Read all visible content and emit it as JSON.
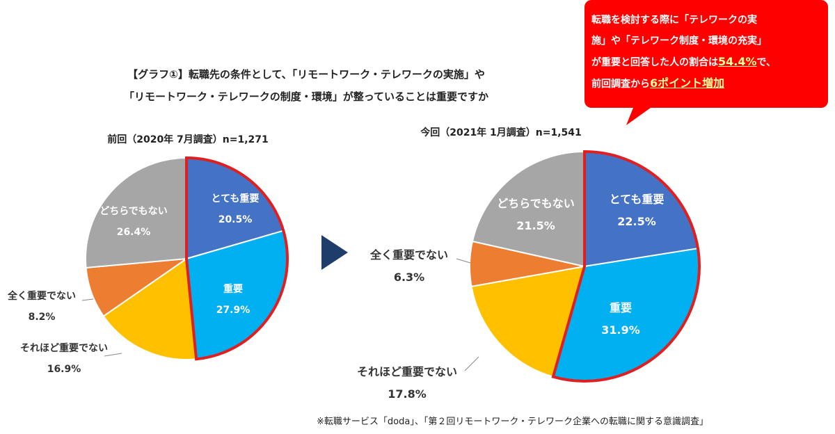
{
  "title_line1": "【グラフ①】転職先の条件として、「リモートワーク・テレワークの実施」や",
  "title_line2": "「リモートワーク・テレワークの制度・環境」が整っていることは重要ですか",
  "callout": {
    "line1": "転職を検討する際に「テレワークの実",
    "line2": "施」や「テレワーク制度・環境の充実」",
    "line3_pre": "が重要と回答した人の割合は",
    "line3_hl": "54.4%",
    "line3_post": "で、",
    "line4_pre": "前回調査から",
    "line4_hl": "6ポイント増加",
    "color": "#ff0000"
  },
  "source": "※転職サービス「doda」、「第２回リモートワーク・テレワーク企業への転職に関する意識調査」",
  "arrow": {
    "icon": "arrow-right-icon",
    "color": "#1f3d6b"
  },
  "chart_data": [
    {
      "type": "pie",
      "title": "前回（2020年 7月調査）n=1,271",
      "slices": [
        {
          "label": "とても重要",
          "value": 20.5,
          "text": "20.5%",
          "color": "#4472c4"
        },
        {
          "label": "重要",
          "value": 27.9,
          "text": "27.9%",
          "color": "#00b0f0"
        },
        {
          "label": "それほど重要でない",
          "value": 16.9,
          "text": "16.9%",
          "color": "#ffc000"
        },
        {
          "label": "全く重要でない",
          "value": 8.2,
          "text": "8.2%",
          "color": "#ed7d31"
        },
        {
          "label": "どちらでもない",
          "value": 26.4,
          "text": "26.4%",
          "color": "#a6a6a6"
        }
      ],
      "highlight_color": "#e02020"
    },
    {
      "type": "pie",
      "title": "今回（2021年 1月調査）n=1,541",
      "slices": [
        {
          "label": "とても重要",
          "value": 22.5,
          "text": "22.5%",
          "color": "#4472c4"
        },
        {
          "label": "重要",
          "value": 31.9,
          "text": "31.9%",
          "color": "#00b0f0"
        },
        {
          "label": "それほど重要でない",
          "value": 17.8,
          "text": "17.8%",
          "color": "#ffc000"
        },
        {
          "label": "全く重要でない",
          "value": 6.3,
          "text": "6.3%",
          "color": "#ed7d31"
        },
        {
          "label": "どちらでもない",
          "value": 21.5,
          "text": "21.5%",
          "color": "#a6a6a6"
        }
      ],
      "highlight_color": "#e02020"
    }
  ]
}
